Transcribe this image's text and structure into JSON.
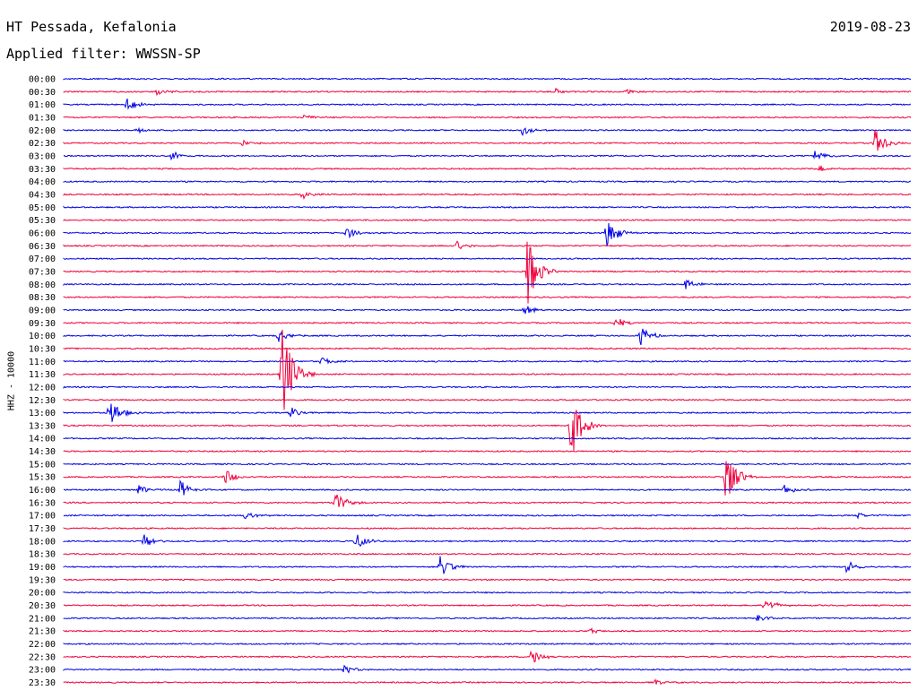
{
  "header": {
    "station": "HT Pessada, Kefalonia",
    "filter": "Applied filter: WWSSN-SP",
    "date": "2019-08-23",
    "side_label": "HHZ - 10000"
  },
  "colors": {
    "odd_trace": "#0000e6",
    "even_trace": "#f0003c",
    "background": "#ffffff"
  },
  "chart_data": {
    "type": "helicorder",
    "title": "HT Pessada, Kefalonia",
    "subtitle": "Applied filter: WWSSN-SP",
    "date": "2019-08-23",
    "ylabel": "HHZ - 10000",
    "line_minutes": 30,
    "rows": [
      "00:00",
      "00:30",
      "01:00",
      "01:30",
      "02:00",
      "02:30",
      "03:00",
      "03:30",
      "04:00",
      "04:30",
      "05:00",
      "05:30",
      "06:00",
      "06:30",
      "07:00",
      "07:30",
      "08:00",
      "08:30",
      "09:00",
      "09:30",
      "10:00",
      "10:30",
      "11:00",
      "11:30",
      "12:00",
      "12:30",
      "13:00",
      "13:30",
      "14:00",
      "14:30",
      "15:00",
      "15:30",
      "16:00",
      "16:30",
      "17:00",
      "17:30",
      "18:00",
      "18:30",
      "19:00",
      "19:30",
      "20:00",
      "20:30",
      "21:00",
      "21:30",
      "22:00",
      "22:30",
      "23:00",
      "23:30"
    ],
    "events": [
      {
        "row": "00:30",
        "minute": 3.3,
        "amp": 0.3
      },
      {
        "row": "00:30",
        "minute": 17.4,
        "amp": 0.3
      },
      {
        "row": "00:30",
        "minute": 19.9,
        "amp": 0.3
      },
      {
        "row": "01:00",
        "minute": 2.2,
        "amp": 0.8
      },
      {
        "row": "01:30",
        "minute": 8.5,
        "amp": 0.3
      },
      {
        "row": "02:00",
        "minute": 2.6,
        "amp": 0.3
      },
      {
        "row": "02:00",
        "minute": 16.2,
        "amp": 0.6
      },
      {
        "row": "02:30",
        "minute": 6.2,
        "amp": 0.4
      },
      {
        "row": "02:30",
        "minute": 28.7,
        "amp": 1.5
      },
      {
        "row": "03:00",
        "minute": 3.8,
        "amp": 0.5
      },
      {
        "row": "03:00",
        "minute": 26.6,
        "amp": 0.7
      },
      {
        "row": "03:30",
        "minute": 26.7,
        "amp": 0.4
      },
      {
        "row": "04:30",
        "minute": 8.4,
        "amp": 0.5
      },
      {
        "row": "06:00",
        "minute": 10.0,
        "amp": 0.6
      },
      {
        "row": "06:00",
        "minute": 19.2,
        "amp": 1.8
      },
      {
        "row": "06:30",
        "minute": 13.9,
        "amp": 0.5
      },
      {
        "row": "07:30",
        "minute": 16.4,
        "amp": 3.6
      },
      {
        "row": "08:00",
        "minute": 22.0,
        "amp": 0.6
      },
      {
        "row": "09:00",
        "minute": 16.3,
        "amp": 0.5
      },
      {
        "row": "09:30",
        "minute": 19.5,
        "amp": 0.6
      },
      {
        "row": "10:00",
        "minute": 7.6,
        "amp": 0.6
      },
      {
        "row": "10:00",
        "minute": 20.4,
        "amp": 1.0
      },
      {
        "row": "11:00",
        "minute": 9.1,
        "amp": 0.5
      },
      {
        "row": "11:30",
        "minute": 7.7,
        "amp": 6.0
      },
      {
        "row": "13:00",
        "minute": 1.6,
        "amp": 1.6
      },
      {
        "row": "13:00",
        "minute": 8.0,
        "amp": 0.6
      },
      {
        "row": "13:30",
        "minute": 17.9,
        "amp": 4.0
      },
      {
        "row": "15:30",
        "minute": 5.7,
        "amp": 0.8
      },
      {
        "row": "15:30",
        "minute": 23.4,
        "amp": 3.2
      },
      {
        "row": "16:00",
        "minute": 2.6,
        "amp": 0.6
      },
      {
        "row": "16:00",
        "minute": 4.1,
        "amp": 1.0
      },
      {
        "row": "16:00",
        "minute": 25.5,
        "amp": 0.7
      },
      {
        "row": "16:30",
        "minute": 9.6,
        "amp": 1.2
      },
      {
        "row": "17:00",
        "minute": 6.4,
        "amp": 0.4
      },
      {
        "row": "17:00",
        "minute": 28.1,
        "amp": 0.3
      },
      {
        "row": "18:00",
        "minute": 2.8,
        "amp": 0.8
      },
      {
        "row": "18:00",
        "minute": 10.3,
        "amp": 1.0
      },
      {
        "row": "19:00",
        "minute": 13.3,
        "amp": 1.2
      },
      {
        "row": "19:00",
        "minute": 27.7,
        "amp": 0.7
      },
      {
        "row": "20:30",
        "minute": 24.8,
        "amp": 0.8
      },
      {
        "row": "21:00",
        "minute": 24.5,
        "amp": 0.5
      },
      {
        "row": "21:30",
        "minute": 18.6,
        "amp": 0.3
      },
      {
        "row": "22:30",
        "minute": 16.5,
        "amp": 1.0
      },
      {
        "row": "23:00",
        "minute": 9.9,
        "amp": 0.5
      },
      {
        "row": "23:30",
        "minute": 20.9,
        "amp": 0.3
      }
    ]
  }
}
